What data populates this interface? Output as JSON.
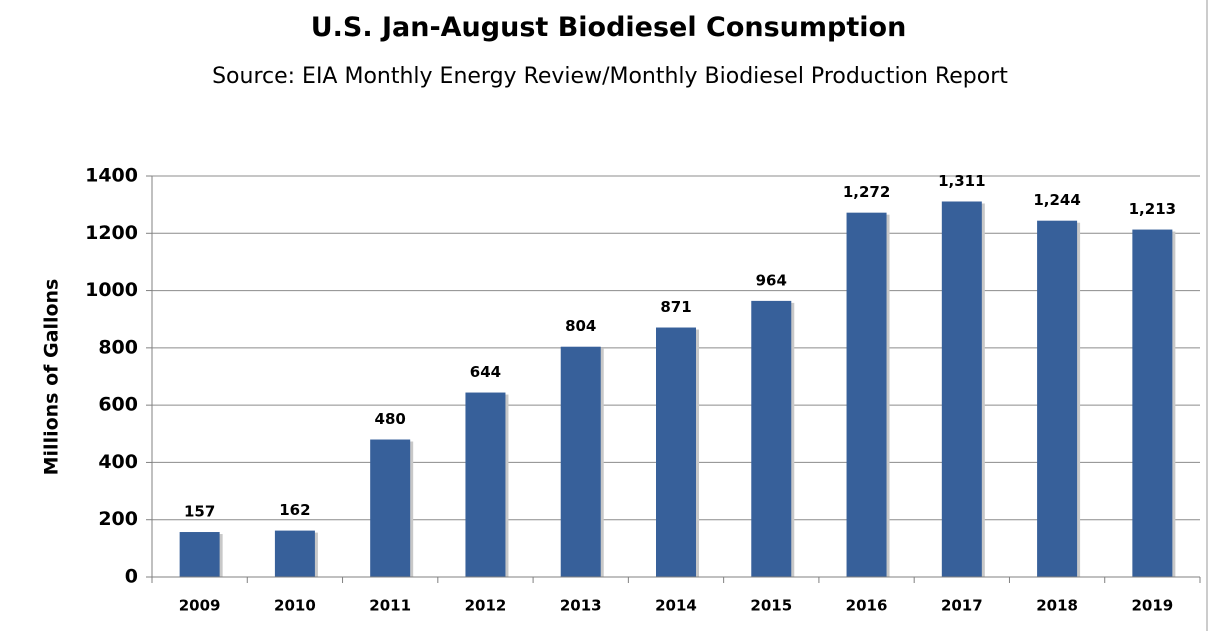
{
  "chart_data": {
    "type": "bar",
    "title": "U.S. Jan-August Biodiesel Consumption",
    "subtitle": "Source: EIA Monthly Energy Review/Monthly Biodiesel Production Report",
    "y_label": "Millions of Gallons",
    "categories": [
      "2009",
      "2010",
      "2011",
      "2012",
      "2013",
      "2014",
      "2015",
      "2016",
      "2017",
      "2018",
      "2019"
    ],
    "values": [
      157,
      162,
      480,
      644,
      804,
      871,
      964,
      1272,
      1311,
      1244,
      1213
    ],
    "value_labels": [
      "157",
      "162",
      "480",
      "644",
      "804",
      "871",
      "964",
      "1,272",
      "1,311",
      "1,244",
      "1,213"
    ],
    "color": "#37609a",
    "ylim": [
      0,
      1400
    ],
    "yticks": [
      0,
      200,
      400,
      600,
      800,
      1000,
      1200,
      1400
    ],
    "grid": true
  }
}
